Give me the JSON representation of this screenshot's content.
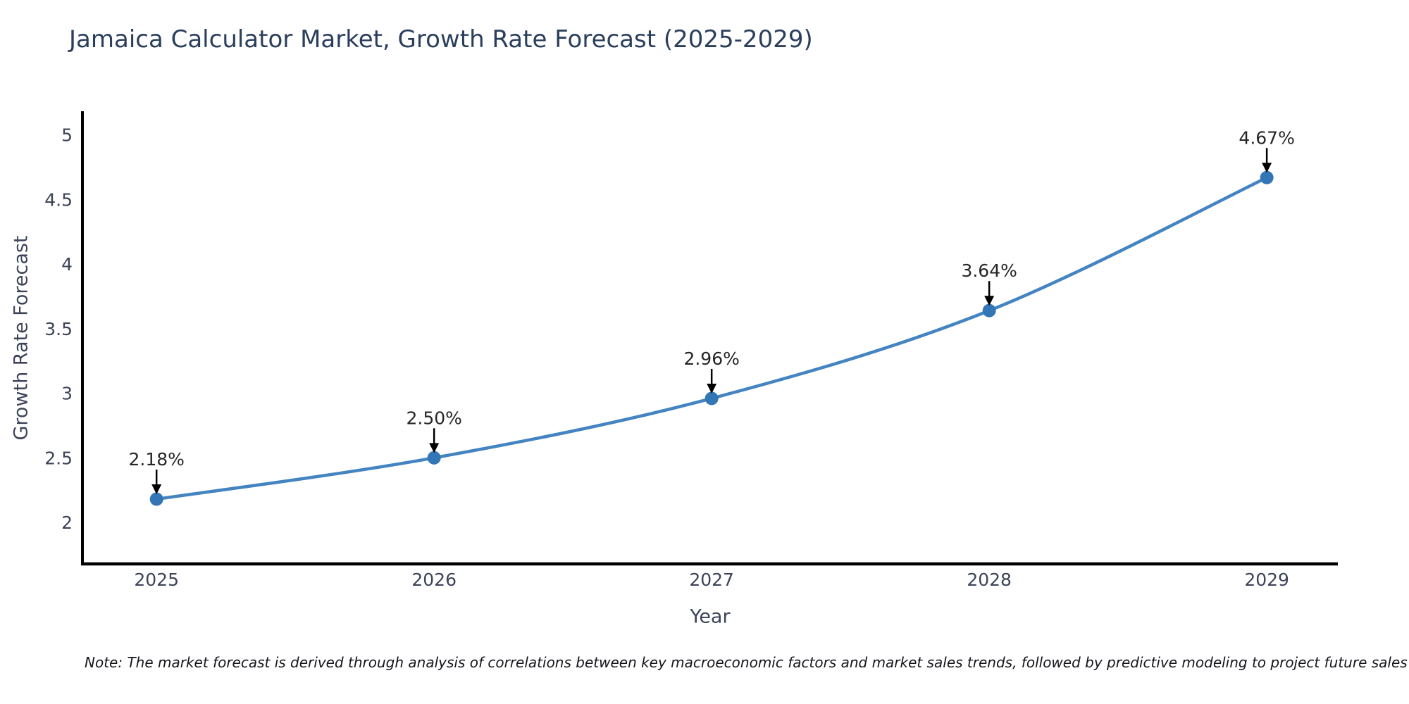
{
  "chart": {
    "note": "Note: The market forecast is derived through analysis of correlations between key macroeconomic factors and market sales trends, followed by predictive modeling to project future sales"
  },
  "chart_data": {
    "type": "line",
    "title": "Jamaica Calculator Market, Growth Rate Forecast (2025-2029)",
    "xlabel": "Year",
    "ylabel": "Growth Rate Forecast",
    "x": [
      2025,
      2026,
      2027,
      2028,
      2029
    ],
    "values": [
      2.18,
      2.5,
      2.96,
      3.64,
      4.67
    ],
    "point_labels": [
      "2.18%",
      "2.50%",
      "2.96%",
      "3.64%",
      "4.67%"
    ],
    "xtick_labels": [
      "2025",
      "2026",
      "2027",
      "2028",
      "2029"
    ],
    "yticks": [
      2,
      2.5,
      3,
      3.5,
      4,
      4.5,
      5
    ],
    "ytick_labels": [
      "2",
      "2.5",
      "3",
      "3.5",
      "4",
      "4.5",
      "5"
    ],
    "xlim": [
      2024.733,
      2029.256
    ],
    "ylim": [
      1.684,
      5.173
    ],
    "grid": false,
    "legend_position": "none",
    "line_shape": "spline",
    "annotation_arrows": true,
    "colors": {
      "line": "#4384c1",
      "marker": "#3376b5",
      "axis": "#000000",
      "title": "#2b3f5c",
      "tick": "#3d4458",
      "annotation": "#262626",
      "note": "#15161c"
    }
  }
}
